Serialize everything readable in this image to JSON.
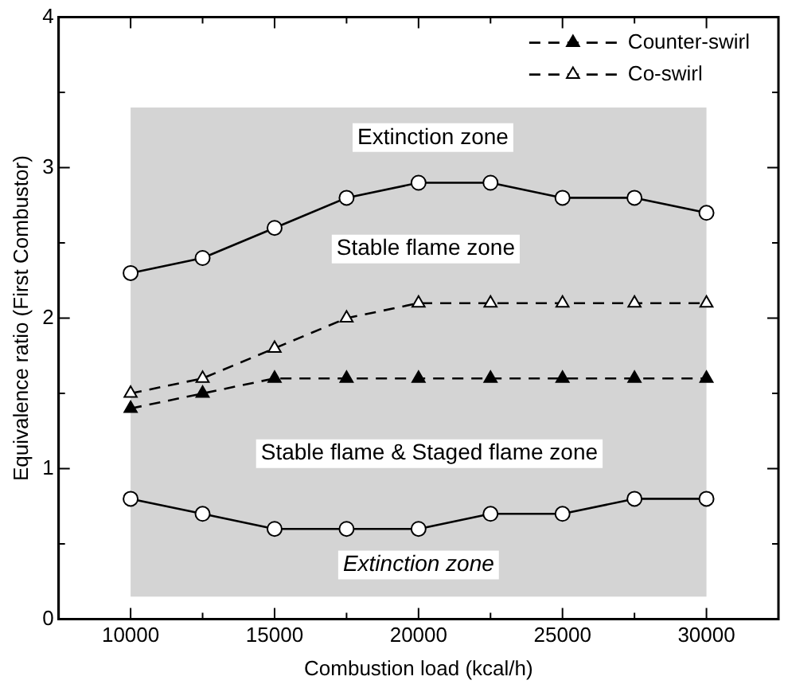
{
  "chart_data": {
    "type": "line",
    "xlabel": "Combustion load (kcal/h)",
    "ylabel": "Equivalence ratio (First Combustor)",
    "x": [
      10000,
      12500,
      15000,
      17500,
      20000,
      22500,
      25000,
      27500,
      30000
    ],
    "xlim": [
      7500,
      32500
    ],
    "xticks": [
      10000,
      {
        "value": 12500,
        "label": null
      },
      15000,
      {
        "value": 17500,
        "label": null
      },
      20000,
      {
        "value": 22500,
        "label": null
      },
      25000,
      {
        "value": 27500,
        "label": null
      },
      30000
    ],
    "ylim": [
      0,
      4
    ],
    "yticks": [
      0,
      {
        "value": 0.5,
        "label": null
      },
      1,
      {
        "value": 1.5,
        "label": null
      },
      2,
      {
        "value": 2.5,
        "label": null
      },
      3,
      {
        "value": 3.5,
        "label": null
      },
      4
    ],
    "grid": false,
    "legend": "top right",
    "series": [
      {
        "color": "#000000",
        "marker": "circle",
        "line_style": "solid",
        "values": [
          2.3,
          2.4,
          2.6,
          2.8,
          2.9,
          2.9,
          2.8,
          2.8,
          2.7
        ]
      },
      {
        "color": "#000000",
        "marker": "circle",
        "line_style": "solid",
        "values": [
          0.8,
          0.7,
          0.6,
          0.6,
          0.6,
          0.7,
          0.7,
          0.8,
          0.8
        ]
      },
      {
        "name": "Counter-swirl",
        "color": "#000000",
        "marker": "triangle",
        "line_style": "dashed",
        "values": [
          1.4,
          1.5,
          1.6,
          1.6,
          1.6,
          1.6,
          1.6,
          1.6,
          1.6
        ]
      },
      {
        "name": "Co-swirl",
        "color": "#000000",
        "marker": "triangle-open",
        "line_style": "dashed",
        "values": [
          1.5,
          1.6,
          1.8,
          2.0,
          2.1,
          2.1,
          2.1,
          2.1,
          2.1
        ]
      }
    ],
    "bands": [
      {
        "axis": "y",
        "from": 0.15,
        "to": 3.4,
        "color": "#d4d4d4"
      }
    ],
    "annotations": [
      "Extinction zone",
      "Stable flame zone",
      "Stable flame & Staged flame zone",
      "Extinction zone"
    ]
  }
}
